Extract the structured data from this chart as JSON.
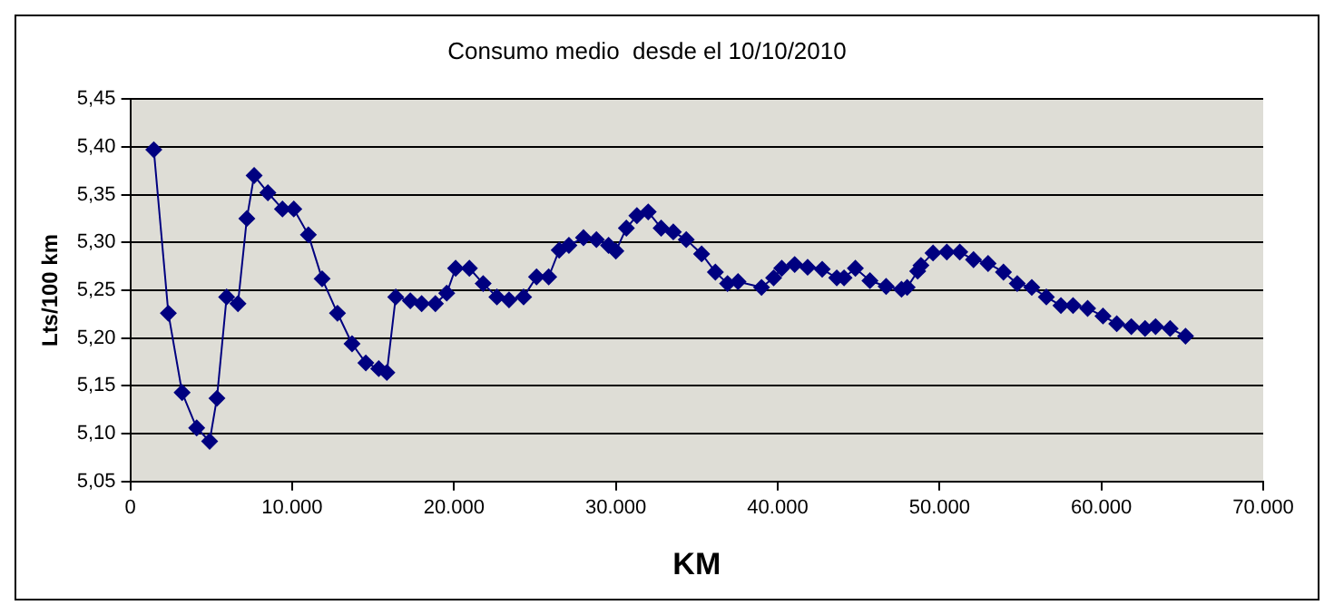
{
  "chart_data": {
    "type": "line",
    "title": "Consumo medio  desde el 10/10/2010",
    "xlabel": "KM",
    "ylabel": "Lts/100 km",
    "x": [
      1450,
      2350,
      3200,
      4100,
      4900,
      5350,
      5950,
      6650,
      7200,
      7650,
      8500,
      9400,
      10100,
      11000,
      11850,
      12800,
      13700,
      14550,
      15350,
      15850,
      16400,
      17300,
      18000,
      18850,
      19550,
      20100,
      20950,
      21800,
      22650,
      23400,
      24300,
      25100,
      25850,
      26500,
      27100,
      28000,
      28800,
      29550,
      30000,
      30650,
      31300,
      32000,
      32800,
      33550,
      34350,
      35300,
      36150,
      36900,
      37550,
      39000,
      39750,
      40250,
      41050,
      41850,
      42750,
      43650,
      44100,
      44800,
      45700,
      46700,
      47650,
      48000,
      48650,
      48850,
      49600,
      50450,
      51250,
      52100,
      53000,
      53950,
      54800,
      55700,
      56600,
      57500,
      58250,
      59150,
      60100,
      60950,
      61850,
      62700,
      63350,
      64250,
      65200
    ],
    "series": [
      {
        "color": "#000080",
        "values": [
          5.397,
          5.226,
          5.143,
          5.106,
          5.092,
          5.137,
          5.243,
          5.236,
          5.325,
          5.37,
          5.352,
          5.335,
          5.335,
          5.308,
          5.262,
          5.226,
          5.194,
          5.174,
          5.168,
          5.164,
          5.243,
          5.239,
          5.236,
          5.236,
          5.247,
          5.273,
          5.273,
          5.257,
          5.243,
          5.24,
          5.243,
          5.264,
          5.264,
          5.292,
          5.297,
          5.305,
          5.303,
          5.297,
          5.291,
          5.315,
          5.328,
          5.332,
          5.315,
          5.311,
          5.303,
          5.288,
          5.269,
          5.257,
          5.259,
          5.253,
          5.263,
          5.273,
          5.277,
          5.274,
          5.272,
          5.263,
          5.263,
          5.273,
          5.26,
          5.254,
          5.251,
          5.253,
          5.27,
          5.276,
          5.289,
          5.29,
          5.29,
          5.282,
          5.278,
          5.269,
          5.257,
          5.253,
          5.243,
          5.234,
          5.234,
          5.231,
          5.223,
          5.215,
          5.212,
          5.21,
          5.212,
          5.21,
          5.202
        ]
      }
    ],
    "xlim": [
      0,
      70000
    ],
    "xticks": [
      {
        "value": 0,
        "label": "0"
      },
      {
        "value": 10000,
        "label": "10.000"
      },
      {
        "value": 20000,
        "label": "20.000"
      },
      {
        "value": 30000,
        "label": "30.000"
      },
      {
        "value": 40000,
        "label": "40.000"
      },
      {
        "value": 50000,
        "label": "50.000"
      },
      {
        "value": 60000,
        "label": "60.000"
      },
      {
        "value": 70000,
        "label": "70.000"
      }
    ],
    "ylim": [
      5.05,
      5.45
    ],
    "yticks": [
      {
        "value": 5.05,
        "label": "5,05"
      },
      {
        "value": 5.1,
        "label": "5,10"
      },
      {
        "value": 5.15,
        "label": "5,15"
      },
      {
        "value": 5.2,
        "label": "5,20"
      },
      {
        "value": 5.25,
        "label": "5,25"
      },
      {
        "value": 5.3,
        "label": "5,30"
      },
      {
        "value": 5.35,
        "label": "5,35"
      },
      {
        "value": 5.4,
        "label": "5,40"
      },
      {
        "value": 5.45,
        "label": "5,45"
      }
    ],
    "grid": "y",
    "legend": false,
    "marker": "diamond",
    "line_style": "solid"
  }
}
